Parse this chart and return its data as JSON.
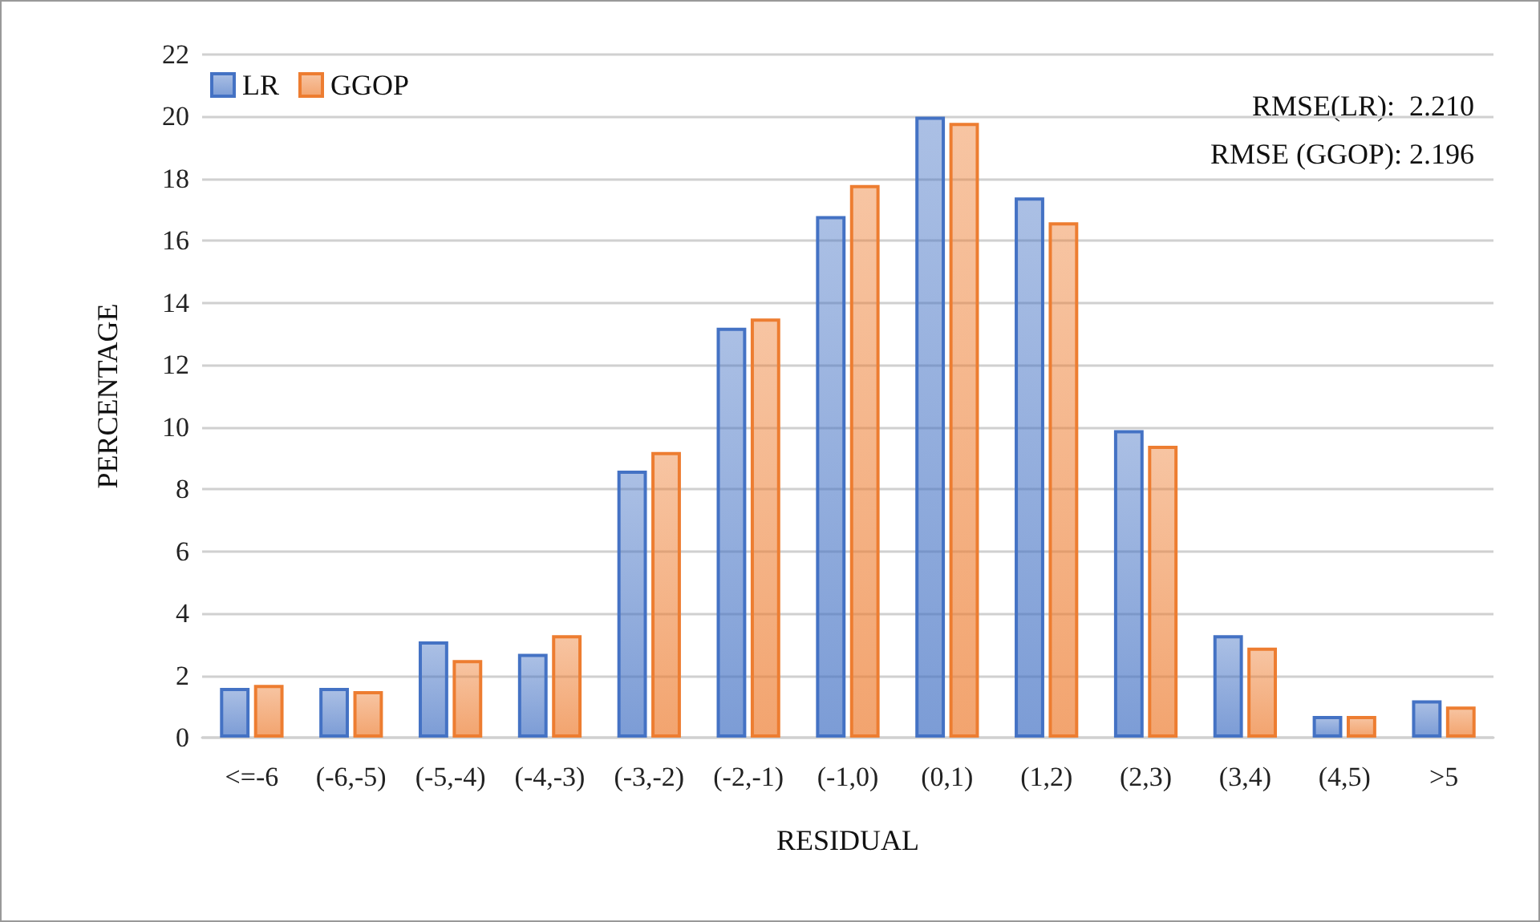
{
  "chart_data": {
    "type": "bar",
    "xlabel": "RESIDUAL",
    "ylabel": "PERCENTAGE",
    "categories": [
      "<=-6",
      "(-6,-5)",
      "(-5,-4)",
      "(-4,-3)",
      "(-3,-2)",
      "(-2,-1)",
      "(-1,0)",
      "(0,1)",
      "(1,2)",
      "(2,3)",
      "(3,4)",
      "(4,5)",
      ">5"
    ],
    "series": [
      {
        "name": "LR",
        "color": "#4472c4",
        "values": [
          1.6,
          1.6,
          3.1,
          2.7,
          8.6,
          13.2,
          16.8,
          20.0,
          17.4,
          9.9,
          3.3,
          0.7,
          1.2
        ]
      },
      {
        "name": "GGOP",
        "color": "#ed7d31",
        "values": [
          1.7,
          1.5,
          2.5,
          3.3,
          9.2,
          13.5,
          17.8,
          19.8,
          16.6,
          9.4,
          2.9,
          0.7,
          1.0
        ]
      }
    ],
    "ylim": [
      0,
      22
    ],
    "yticks": [
      0,
      2,
      4,
      6,
      8,
      10,
      12,
      14,
      16,
      18,
      20,
      22
    ],
    "grid": "y",
    "legend": "top left",
    "annotations": [
      "RMSE(LR):  2.210",
      "RMSE (GGOP): 2.196"
    ]
  }
}
